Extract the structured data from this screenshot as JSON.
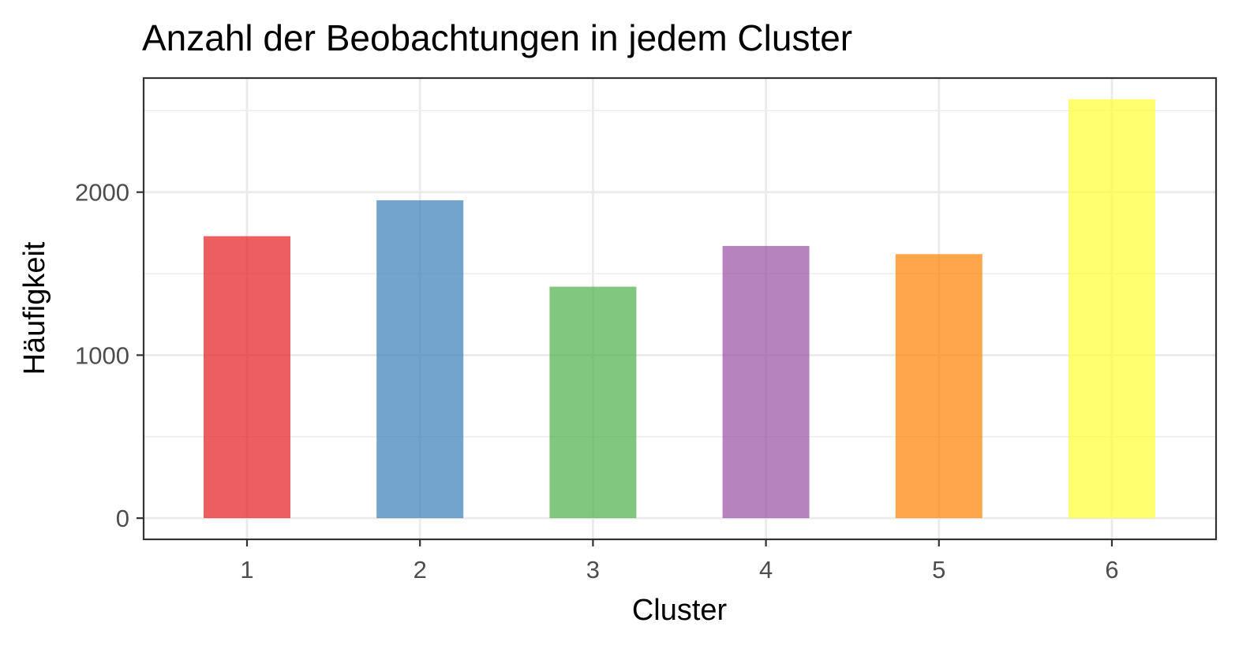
{
  "chart_data": {
    "type": "bar",
    "title": "Anzahl der Beobachtungen in jedem Cluster",
    "xlabel": "Cluster",
    "ylabel": "Häufigkeit",
    "categories": [
      "1",
      "2",
      "3",
      "4",
      "5",
      "6"
    ],
    "values": [
      1730,
      1950,
      1420,
      1670,
      1620,
      2570
    ],
    "colors": [
      "#e41a1c",
      "#377eb8",
      "#4daf4a",
      "#984ea3",
      "#ff7f00",
      "#ffff33"
    ],
    "bar_opacity": 0.7,
    "ylim": [
      -130,
      2700
    ],
    "yticks": [
      0,
      1000,
      2000
    ],
    "yticks_minor": [
      500,
      1500,
      2500
    ],
    "grid": true,
    "legend": "none"
  }
}
